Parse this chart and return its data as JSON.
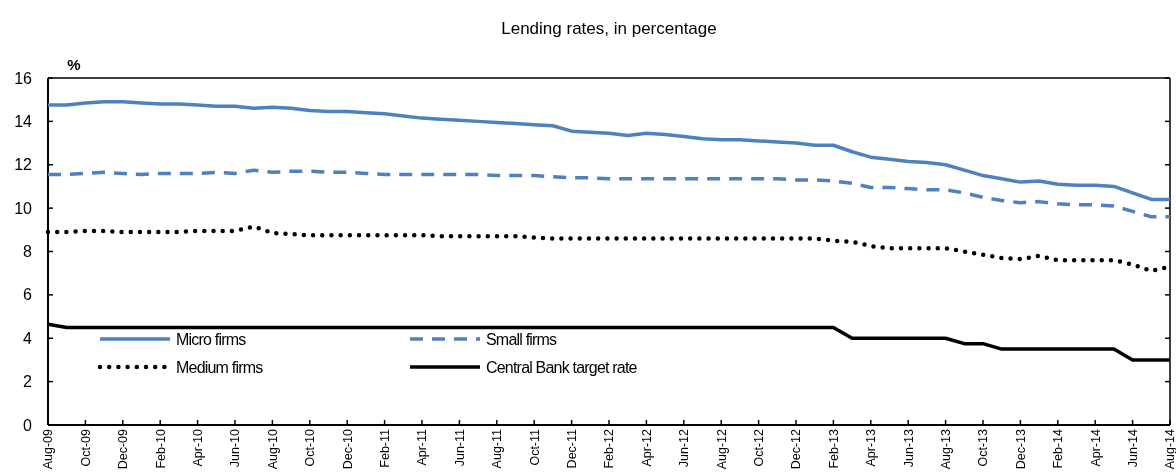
{
  "chart_data": {
    "type": "line",
    "title": "Lending rates, in percentage",
    "ylabel": "%",
    "categories": [
      "Aug-09",
      null,
      "Oct-09",
      null,
      "Dec-09",
      null,
      "Feb-10",
      null,
      "Apr-10",
      null,
      "Jun-10",
      null,
      "Aug-10",
      null,
      "Oct-10",
      null,
      "Dec-10",
      null,
      "Feb-11",
      null,
      "Apr-11",
      null,
      "Jun-11",
      null,
      "Aug-11",
      null,
      "Oct-11",
      null,
      "Dec-11",
      null,
      "Feb-12",
      null,
      "Apr-12",
      null,
      "Jun-12",
      null,
      "Aug-12",
      null,
      "Oct-12",
      null,
      "Dec-12",
      null,
      "Feb-13",
      null,
      "Apr-13",
      null,
      "Jun-13",
      null,
      "Aug-13",
      null,
      "Oct-13",
      null,
      "Dec-13",
      null,
      "Feb-14",
      null,
      "Apr-14",
      null,
      "Jun-14",
      null,
      "Aug-14"
    ],
    "series": [
      {
        "name": "Micro firms",
        "color": "#4f81bd",
        "line_style": "solid",
        "values": [
          14.75,
          14.75,
          14.85,
          14.9,
          14.9,
          14.85,
          14.8,
          14.8,
          14.75,
          14.7,
          14.7,
          14.6,
          14.65,
          14.6,
          14.5,
          14.45,
          14.45,
          14.4,
          14.35,
          14.25,
          14.15,
          14.1,
          14.05,
          14.0,
          13.95,
          13.9,
          13.85,
          13.8,
          13.55,
          13.5,
          13.45,
          13.35,
          13.45,
          13.4,
          13.3,
          13.2,
          13.15,
          13.15,
          13.1,
          13.05,
          13.0,
          12.9,
          12.9,
          12.6,
          12.35,
          12.25,
          12.15,
          12.1,
          12.0,
          11.75,
          11.5,
          11.35,
          11.2,
          11.25,
          11.1,
          11.05,
          11.05,
          11.0,
          10.7,
          10.4,
          10.4
        ]
      },
      {
        "name": "Small firms",
        "color": "#4f81bd",
        "line_style": "dashed",
        "values": [
          11.55,
          11.55,
          11.6,
          11.65,
          11.6,
          11.55,
          11.6,
          11.6,
          11.6,
          11.65,
          11.6,
          11.75,
          11.65,
          11.7,
          11.7,
          11.65,
          11.65,
          11.6,
          11.55,
          11.55,
          11.55,
          11.55,
          11.55,
          11.55,
          11.5,
          11.5,
          11.5,
          11.45,
          11.4,
          11.4,
          11.35,
          11.35,
          11.35,
          11.35,
          11.35,
          11.35,
          11.35,
          11.35,
          11.35,
          11.35,
          11.3,
          11.3,
          11.25,
          11.15,
          10.95,
          10.95,
          10.9,
          10.85,
          10.85,
          10.7,
          10.5,
          10.35,
          10.25,
          10.3,
          10.2,
          10.15,
          10.15,
          10.1,
          9.85,
          9.6,
          9.6
        ]
      },
      {
        "name": "Medium firms",
        "color": "#000000",
        "line_style": "dotted",
        "values": [
          8.9,
          8.9,
          8.95,
          8.95,
          8.9,
          8.9,
          8.9,
          8.9,
          8.95,
          8.95,
          8.95,
          9.15,
          8.85,
          8.8,
          8.75,
          8.75,
          8.75,
          8.75,
          8.75,
          8.75,
          8.75,
          8.7,
          8.7,
          8.7,
          8.7,
          8.7,
          8.65,
          8.6,
          8.6,
          8.6,
          8.6,
          8.6,
          8.6,
          8.6,
          8.6,
          8.6,
          8.6,
          8.6,
          8.6,
          8.6,
          8.6,
          8.6,
          8.5,
          8.45,
          8.25,
          8.15,
          8.15,
          8.15,
          8.15,
          8.0,
          7.85,
          7.7,
          7.65,
          7.8,
          7.6,
          7.6,
          7.6,
          7.6,
          7.4,
          7.1,
          7.3
        ]
      },
      {
        "name": "Central Bank target rate",
        "color": "#000000",
        "line_style": "solid",
        "values": [
          4.65,
          4.5,
          4.5,
          4.5,
          4.5,
          4.5,
          4.5,
          4.5,
          4.5,
          4.5,
          4.5,
          4.5,
          4.5,
          4.5,
          4.5,
          4.5,
          4.5,
          4.5,
          4.5,
          4.5,
          4.5,
          4.5,
          4.5,
          4.5,
          4.5,
          4.5,
          4.5,
          4.5,
          4.5,
          4.5,
          4.5,
          4.5,
          4.5,
          4.5,
          4.5,
          4.5,
          4.5,
          4.5,
          4.5,
          4.5,
          4.5,
          4.5,
          4.5,
          4.0,
          4.0,
          4.0,
          4.0,
          4.0,
          4.0,
          3.75,
          3.75,
          3.5,
          3.5,
          3.5,
          3.5,
          3.5,
          3.5,
          3.5,
          3.0,
          3.0,
          3.0
        ]
      }
    ],
    "ylim": [
      0,
      16
    ],
    "yticks": [
      0,
      2,
      4,
      6,
      8,
      10,
      12,
      14,
      16
    ],
    "grid": false,
    "legend": "bottom left",
    "marker": "none"
  }
}
